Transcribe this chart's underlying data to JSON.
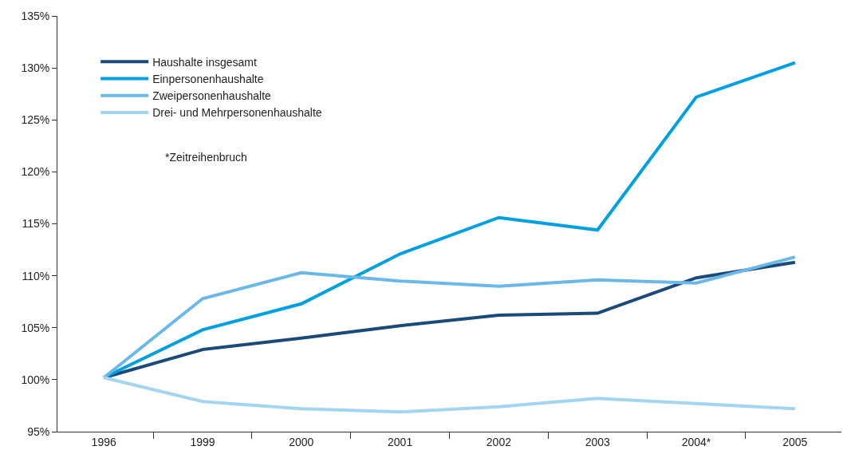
{
  "chart_data": {
    "type": "line",
    "categories": [
      "1996",
      "1999",
      "2000",
      "2001",
      "2002",
      "2003",
      "2004*",
      "2005"
    ],
    "series": [
      {
        "name": "Haushalte insgesamt",
        "color": "#1a4a7a",
        "values": [
          100.2,
          102.9,
          104.0,
          105.2,
          106.2,
          106.4,
          109.8,
          111.3
        ]
      },
      {
        "name": "Einpersonenhaushalte",
        "color": "#009fdf",
        "values": [
          100.2,
          104.8,
          107.3,
          112.1,
          115.6,
          114.4,
          127.2,
          130.5
        ]
      },
      {
        "name": "Zweipersonenhaushalte",
        "color": "#6bb8e8",
        "values": [
          100.2,
          107.8,
          110.3,
          109.5,
          109.0,
          109.6,
          109.3,
          111.8
        ]
      },
      {
        "name": "Drei- und Mehrpersonenhaushalte",
        "color": "#a3d4f0",
        "values": [
          100.2,
          97.9,
          97.2,
          96.9,
          97.4,
          98.2,
          97.7,
          97.2
        ]
      }
    ],
    "ylim": [
      95,
      135
    ],
    "yticks": [
      {
        "value": 95,
        "label": "95%"
      },
      {
        "value": 100,
        "label": "100%"
      },
      {
        "value": 105,
        "label": "105%"
      },
      {
        "value": 110,
        "label": "110%"
      },
      {
        "value": 115,
        "label": "115%"
      },
      {
        "value": 120,
        "label": "120%"
      },
      {
        "value": 125,
        "label": "125%"
      },
      {
        "value": 130,
        "label": "130%"
      },
      {
        "value": 135,
        "label": "135%"
      }
    ],
    "annotations": [
      "*Zeitreihenbruch"
    ],
    "legend": "top left",
    "marker": "none",
    "line_style": "solid"
  }
}
